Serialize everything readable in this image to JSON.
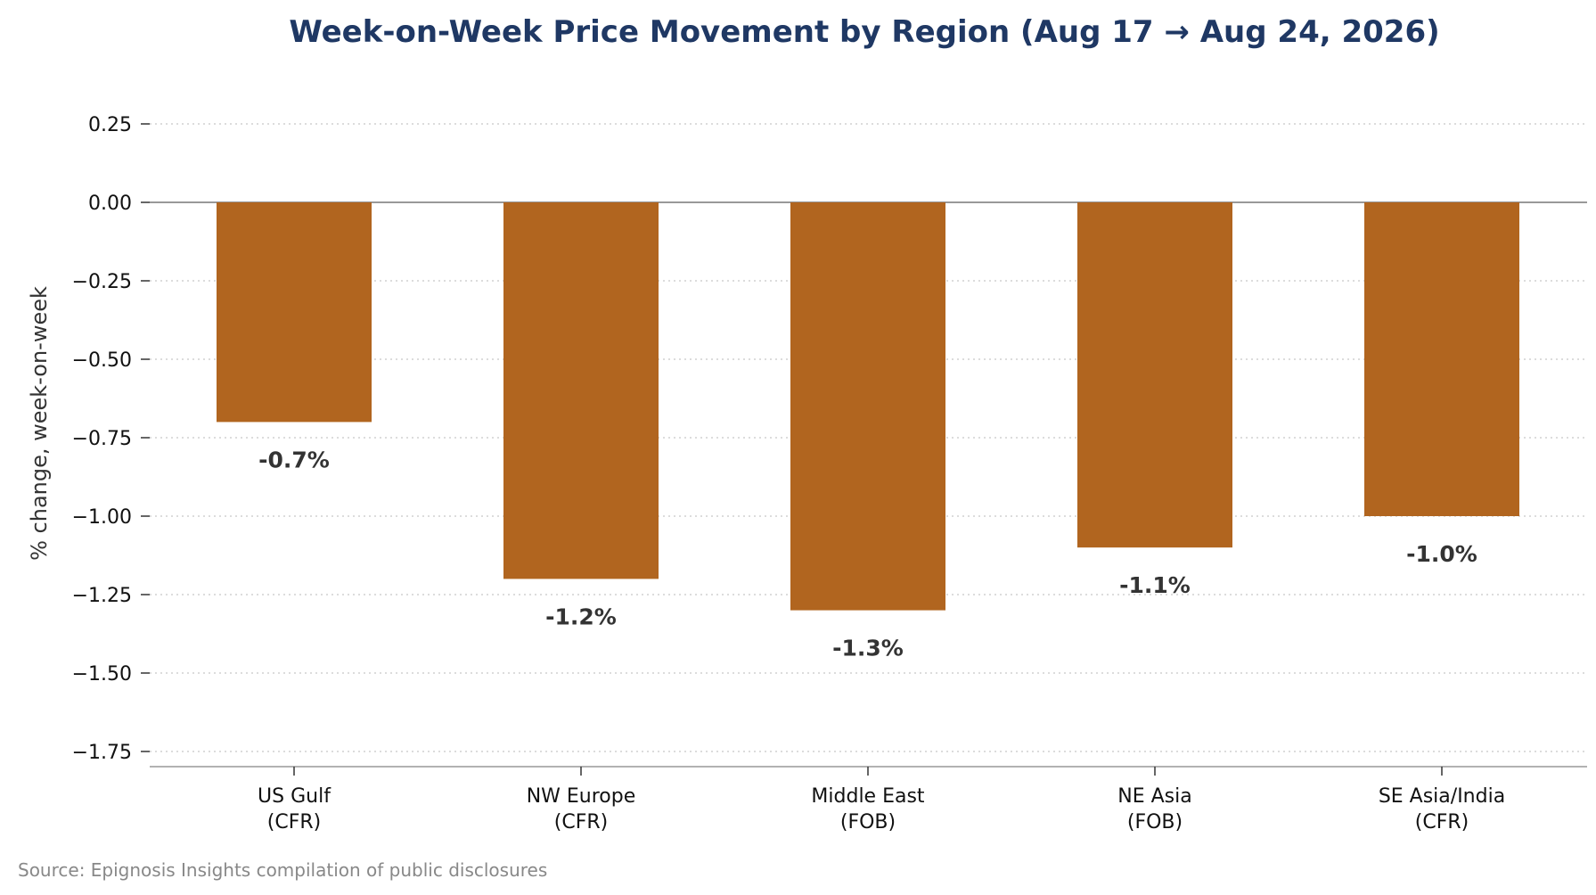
{
  "chart_data": {
    "type": "bar",
    "title": "Week-on-Week Price Movement by Region (Aug 17 → Aug 24, 2026)",
    "ylabel": "% change, week-on-week",
    "xlabel": "",
    "categories": [
      [
        "US Gulf",
        "(CFR)"
      ],
      [
        "NW Europe",
        "(CFR)"
      ],
      [
        "Middle East",
        "(FOB)"
      ],
      [
        "NE Asia",
        "(FOB)"
      ],
      [
        "SE Asia/India",
        "(CFR)"
      ]
    ],
    "values": [
      -0.7,
      -1.2,
      -1.3,
      -1.1,
      -1.0
    ],
    "data_labels": [
      "-0.7%",
      "-1.2%",
      "-1.3%",
      "-1.1%",
      "-1.0%"
    ],
    "yticks": [
      0.25,
      0.0,
      -0.25,
      -0.5,
      -0.75,
      -1.0,
      -1.25,
      -1.5,
      -1.75
    ],
    "ytick_labels": [
      "0.25",
      "0.00",
      "−0.25",
      "−0.50",
      "−0.75",
      "−1.00",
      "−1.25",
      "−1.50",
      "−1.75"
    ],
    "ylim": [
      -1.8,
      0.3
    ],
    "grid": "horizontal dotted",
    "zero_line": true,
    "bar_color": "#b1651f",
    "grid_color": "#c8c8c8",
    "zero_line_color": "#999999",
    "legend": "none"
  },
  "source_note": "Source: Epignosis Insights compilation of public disclosures"
}
